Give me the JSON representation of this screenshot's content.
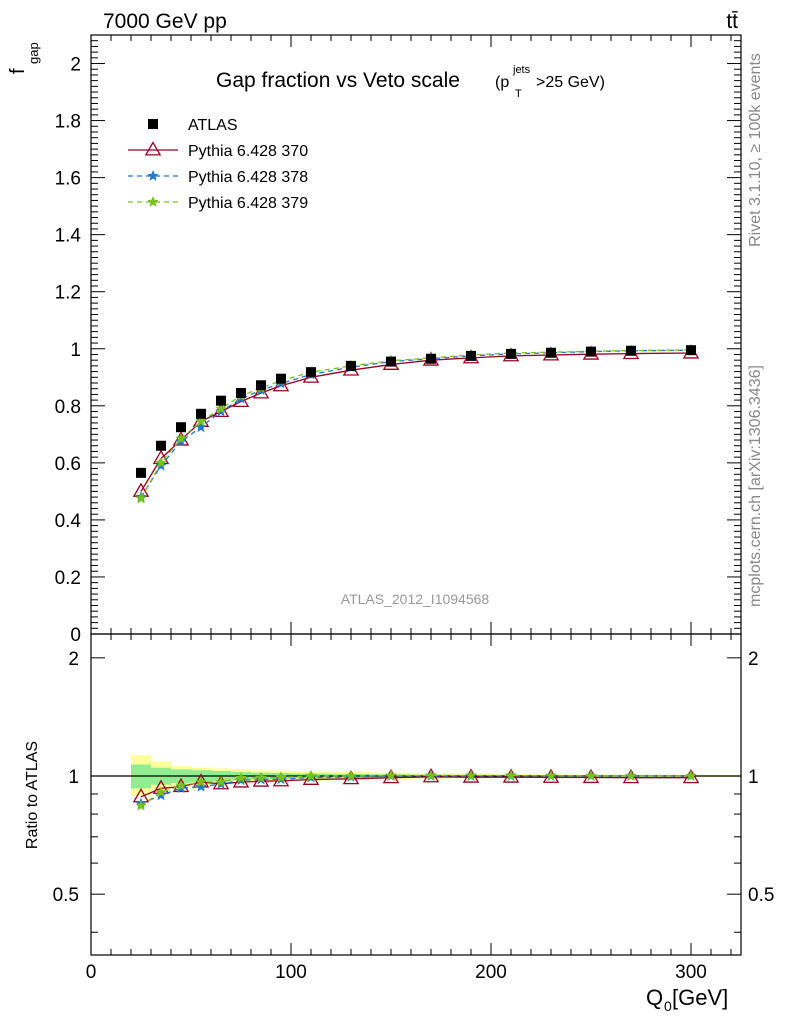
{
  "header": {
    "energy_label": "7000 GeV pp",
    "process_label": "tt̄",
    "title_main": "Gap fraction vs Veto scale",
    "title_cut": "(p",
    "title_cut_sup": "jets",
    "title_cut_sub": "T",
    "title_cut_end": ">25 GeV)",
    "analysis_id": "ATLAS_2012_I1094568"
  },
  "side_labels": {
    "rivet": "Rivet 3.1.10, ≥ 100k events",
    "mcplots": "mcplots.cern.ch [arXiv:1306.3436]"
  },
  "axes": {
    "ylabel_main": "f",
    "ylabel_main_sub": "gap",
    "ylabel_ratio": "Ratio to ATLAS",
    "xlabel": "Q",
    "xlabel_sub": "0",
    "xlabel_unit": " [GeV]",
    "xlim": [
      0,
      325
    ],
    "ylim_main": [
      0,
      2.1
    ],
    "ylim_ratio": [
      0.35,
      2.3
    ],
    "x_ticks": [
      "0",
      "100",
      "200",
      "300"
    ],
    "y_ticks_main": [
      "0",
      "0.2",
      "0.4",
      "0.6",
      "0.8",
      "1",
      "1.2",
      "1.4",
      "1.6",
      "1.8",
      "2"
    ],
    "y_ticks_ratio": [
      "0.5",
      "1",
      "2"
    ]
  },
  "legend": [
    {
      "label": "ATLAS"
    },
    {
      "label": "Pythia 6.428 370"
    },
    {
      "label": "Pythia 6.428 378"
    },
    {
      "label": "Pythia 6.428 379"
    }
  ],
  "colors": {
    "atlas": "#000000",
    "p370": "#990022",
    "p378": "#1f77d4",
    "p379": "#77c21a",
    "band_inner": "#90ee90",
    "band_outer": "#ffff99"
  },
  "chart_data": {
    "type": "scatter",
    "x": [
      25,
      35,
      45,
      55,
      65,
      75,
      85,
      95,
      110,
      130,
      150,
      170,
      190,
      210,
      230,
      250,
      270,
      300
    ],
    "band_edges": [
      20,
      30,
      40,
      50,
      60,
      70,
      80,
      90,
      100,
      120,
      140,
      160,
      180,
      200,
      220,
      240,
      260,
      280,
      325
    ],
    "series": [
      {
        "name": "ATLAS",
        "values": [
          0.565,
          0.66,
          0.725,
          0.772,
          0.818,
          0.845,
          0.872,
          0.895,
          0.918,
          0.94,
          0.955,
          0.965,
          0.975,
          0.982,
          0.986,
          0.99,
          0.993,
          0.995
        ]
      },
      {
        "name": "Pythia 6.428 370",
        "values": [
          0.5,
          0.615,
          0.68,
          0.745,
          0.78,
          0.815,
          0.845,
          0.87,
          0.9,
          0.925,
          0.945,
          0.96,
          0.968,
          0.975,
          0.978,
          0.981,
          0.983,
          0.985
        ]
      },
      {
        "name": "Pythia 6.428 378",
        "values": [
          0.48,
          0.59,
          0.675,
          0.725,
          0.78,
          0.825,
          0.855,
          0.878,
          0.91,
          0.935,
          0.955,
          0.965,
          0.975,
          0.982,
          0.986,
          0.99,
          0.993,
          0.995
        ]
      },
      {
        "name": "Pythia 6.428 379",
        "values": [
          0.475,
          0.6,
          0.685,
          0.745,
          0.79,
          0.835,
          0.862,
          0.888,
          0.918,
          0.94,
          0.958,
          0.968,
          0.978,
          0.985,
          0.988,
          0.991,
          0.994,
          0.996
        ]
      }
    ],
    "ratio_series": [
      {
        "name": "Pythia 6.428 370",
        "values": [
          0.885,
          0.93,
          0.94,
          0.965,
          0.955,
          0.965,
          0.97,
          0.972,
          0.98,
          0.984,
          0.99,
          0.995,
          0.993,
          0.993,
          0.992,
          0.991,
          0.99,
          0.99
        ]
      },
      {
        "name": "Pythia 6.428 378",
        "values": [
          0.85,
          0.893,
          0.931,
          0.939,
          0.954,
          0.976,
          0.98,
          0.981,
          0.991,
          0.995,
          1.0,
          1.0,
          1.0,
          1.0,
          1.0,
          1.0,
          1.0,
          1.0
        ]
      },
      {
        "name": "Pythia 6.428 379",
        "values": [
          0.84,
          0.909,
          0.945,
          0.965,
          0.966,
          0.988,
          0.989,
          0.992,
          1.0,
          1.0,
          1.003,
          1.003,
          1.003,
          1.003,
          1.002,
          1.001,
          1.001,
          1.001
        ]
      }
    ],
    "band_stat": [
      0.93,
      0.95,
      0.96,
      0.965,
      0.97,
      0.975,
      0.98,
      0.982,
      0.985,
      0.988,
      0.99,
      0.992,
      0.993,
      0.994,
      0.995,
      0.996,
      0.997,
      0.997
    ],
    "band_stat_hi": [
      1.07,
      1.05,
      1.04,
      1.035,
      1.03,
      1.025,
      1.02,
      1.018,
      1.015,
      1.012,
      1.01,
      1.008,
      1.007,
      1.006,
      1.005,
      1.004,
      1.003,
      1.003
    ],
    "band_tot_lo": [
      0.89,
      0.92,
      0.94,
      0.95,
      0.955,
      0.96,
      0.965,
      0.968,
      0.972,
      0.976,
      0.98,
      0.983,
      0.986,
      0.988,
      0.99,
      0.991,
      0.993,
      0.994
    ],
    "band_tot_hi": [
      1.13,
      1.09,
      1.06,
      1.05,
      1.045,
      1.04,
      1.035,
      1.032,
      1.028,
      1.024,
      1.02,
      1.017,
      1.014,
      1.012,
      1.01,
      1.009,
      1.007,
      1.006
    ],
    "grid": false,
    "legend_position": "top-left"
  }
}
